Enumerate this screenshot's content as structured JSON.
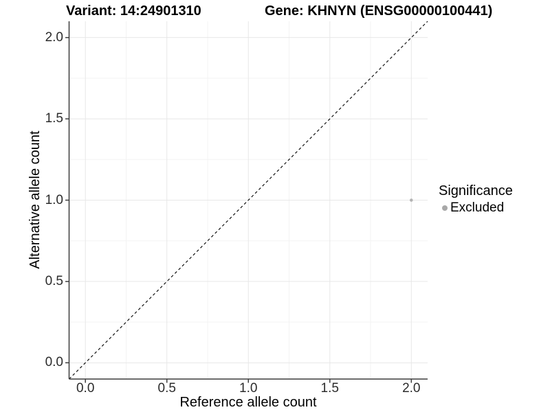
{
  "header": {
    "variant_title": "Variant: 14:24901310",
    "gene_title": "Gene: KHNYN (ENSG00000100441)"
  },
  "axes": {
    "x": {
      "label": "Reference allele count",
      "tick_labels": [
        "0.0",
        "0.5",
        "1.0",
        "1.5",
        "2.0"
      ]
    },
    "y": {
      "label": "Alternative allele count",
      "tick_labels": [
        "0.0",
        "0.5",
        "1.0",
        "1.5",
        "2.0"
      ]
    }
  },
  "legend": {
    "title": "Significance",
    "items": [
      {
        "label": "Excluded",
        "color": "#a8a8a8"
      }
    ]
  },
  "chart_data": {
    "type": "scatter",
    "title": "Variant: 14:24901310 | Gene: KHNYN (ENSG00000100441)",
    "xlabel": "Reference allele count",
    "ylabel": "Alternative allele count",
    "xlim": [
      -0.1,
      2.1
    ],
    "ylim": [
      -0.1,
      2.1
    ],
    "x_major_ticks": [
      0,
      0.5,
      1,
      1.5,
      2
    ],
    "y_major_ticks": [
      0,
      0.5,
      1,
      1.5,
      2
    ],
    "x_minor_ticks": [
      0.25,
      0.75,
      1.25,
      1.75
    ],
    "y_minor_ticks": [
      0.25,
      0.75,
      1.25,
      1.75
    ],
    "grid": "major+minor",
    "legend_position": "right",
    "series": [
      {
        "name": "Excluded",
        "marker": "circle",
        "color": "#b3b3b3",
        "points": [
          [
            2.0,
            1.0
          ]
        ]
      }
    ],
    "reference_line": {
      "equation": "y = x",
      "style": "dashed",
      "color": "#111111",
      "from": [
        -0.1,
        -0.1
      ],
      "to": [
        2.1,
        2.1
      ]
    }
  },
  "style": {
    "background": "#ffffff",
    "axis_color": "#3c3c3c",
    "tick_label_color": "#2b2b2b",
    "major_grid_color": "#e7e7e7",
    "minor_grid_color": "#f3f3f3",
    "point_color": "#b3b3b3",
    "legend_key_color": "#a8a8a8",
    "dashed_line_color": "#111111"
  }
}
